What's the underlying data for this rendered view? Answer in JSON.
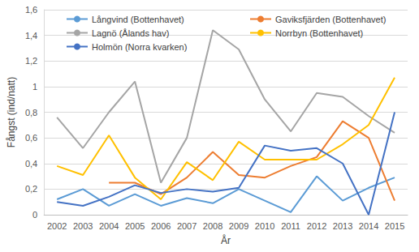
{
  "chart_data": {
    "type": "line",
    "x_label": "År",
    "y_label": "Fångst (ind/natt)",
    "categories": [
      "2002",
      "2003",
      "2004",
      "2005",
      "2006",
      "2007",
      "2008",
      "2009",
      "2010",
      "2011",
      "2012",
      "2013",
      "2014",
      "2015"
    ],
    "series": [
      {
        "name": "Långvind (Bottenhavet)",
        "color": "#5B9BD5",
        "values": [
          0.12,
          0.2,
          0.07,
          0.16,
          0.07,
          0.13,
          0.09,
          0.2,
          0.11,
          0.02,
          0.3,
          0.11,
          0.21,
          0.29
        ]
      },
      {
        "name": "Gaviksfjärden (Bottenhavet)",
        "color": "#ED7D31",
        "values": [
          null,
          null,
          0.25,
          0.25,
          0.16,
          0.29,
          0.49,
          0.31,
          0.29,
          0.38,
          0.45,
          0.73,
          0.6,
          0.11
        ]
      },
      {
        "name": "Lagnö (Ålands hav)",
        "color": "#A5A5A5",
        "values": [
          0.76,
          0.52,
          0.8,
          1.04,
          0.25,
          0.6,
          1.44,
          1.29,
          0.9,
          0.65,
          0.95,
          0.92,
          0.77,
          0.64
        ]
      },
      {
        "name": "Norrbyn (Bottenhavet)",
        "color": "#FFC000",
        "values": [
          0.38,
          0.31,
          0.62,
          0.29,
          0.12,
          0.41,
          0.27,
          0.57,
          0.43,
          0.43,
          0.43,
          0.55,
          0.7,
          1.07
        ]
      },
      {
        "name": "Holmön (Norra kvarken)",
        "color": "#4472C4",
        "values": [
          0.1,
          0.07,
          0.14,
          0.23,
          0.17,
          0.2,
          0.18,
          0.21,
          0.54,
          0.5,
          0.52,
          0.4,
          0.0,
          0.8
        ]
      }
    ],
    "ylim": [
      0,
      1.6
    ],
    "yticks": [
      0,
      {
        "value": 0.2,
        "label": "0,2"
      },
      {
        "value": 0.4,
        "label": "0,4"
      },
      {
        "value": 0.6,
        "label": "0,6"
      },
      {
        "value": 0.8,
        "label": "0,8"
      },
      {
        "value": 1.0,
        "label": "1"
      },
      {
        "value": 1.2,
        "label": "1,2"
      },
      {
        "value": 1.4,
        "label": "1,4"
      },
      {
        "value": 1.6,
        "label": "1,6"
      }
    ],
    "grid": true,
    "legend": "top",
    "marker": "none",
    "line_style": "solid"
  }
}
